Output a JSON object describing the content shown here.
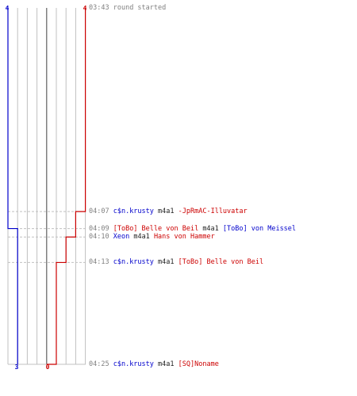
{
  "colors": {
    "blue_team": "#0000cc",
    "red_team": "#cc0000",
    "grid": "#c0c0c0",
    "center_line": "#606060",
    "timestamp": "#808080",
    "weapon": "#222222"
  },
  "scores": {
    "blue_start": "4",
    "red_start": "4",
    "blue_end": "3",
    "red_end": "0"
  },
  "chart_data": {
    "type": "line",
    "title": "",
    "xlabel": "",
    "ylabel": "",
    "xlim": [
      0,
      4
    ],
    "series": [
      {
        "name": "",
        "color": "#0000cc",
        "points": [
          {
            "time": "03:43",
            "alive": 4
          },
          {
            "time": "04:09",
            "alive": 3
          },
          {
            "time": "04:25",
            "alive": 3
          }
        ]
      },
      {
        "name": "",
        "color": "#cc0000",
        "points": [
          {
            "time": "03:43",
            "alive": 4
          },
          {
            "time": "04:07",
            "alive": 3
          },
          {
            "time": "04:10",
            "alive": 2
          },
          {
            "time": "04:13",
            "alive": 1
          },
          {
            "time": "04:25",
            "alive": 0
          }
        ]
      }
    ]
  },
  "events": [
    {
      "time": "03:43",
      "text": "round started",
      "type": "start"
    },
    {
      "time": "04:07",
      "killer": "c$n.krusty",
      "killer_team": "blue",
      "weapon": "m4a1",
      "victim": "-JpRmAC-Illuvatar",
      "victim_team": "red"
    },
    {
      "time": "04:09",
      "killer": "[ToBo] Belle von Beil",
      "killer_team": "red",
      "weapon": "m4a1",
      "victim": "[ToBo] von Meissel",
      "victim_team": "blue"
    },
    {
      "time": "04:10",
      "killer": "Xeon",
      "killer_team": "blue",
      "weapon": "m4a1",
      "victim": "Hans von Hammer",
      "victim_team": "red"
    },
    {
      "time": "04:13",
      "killer": "c$n.krusty",
      "killer_team": "blue",
      "weapon": "m4a1",
      "victim": "[ToBo] Belle von Beil",
      "victim_team": "red"
    },
    {
      "time": "04:25",
      "killer": "c$n.krusty",
      "killer_team": "blue",
      "weapon": "m4a1",
      "victim": "[SQ]Noname",
      "victim_team": "red"
    }
  ]
}
